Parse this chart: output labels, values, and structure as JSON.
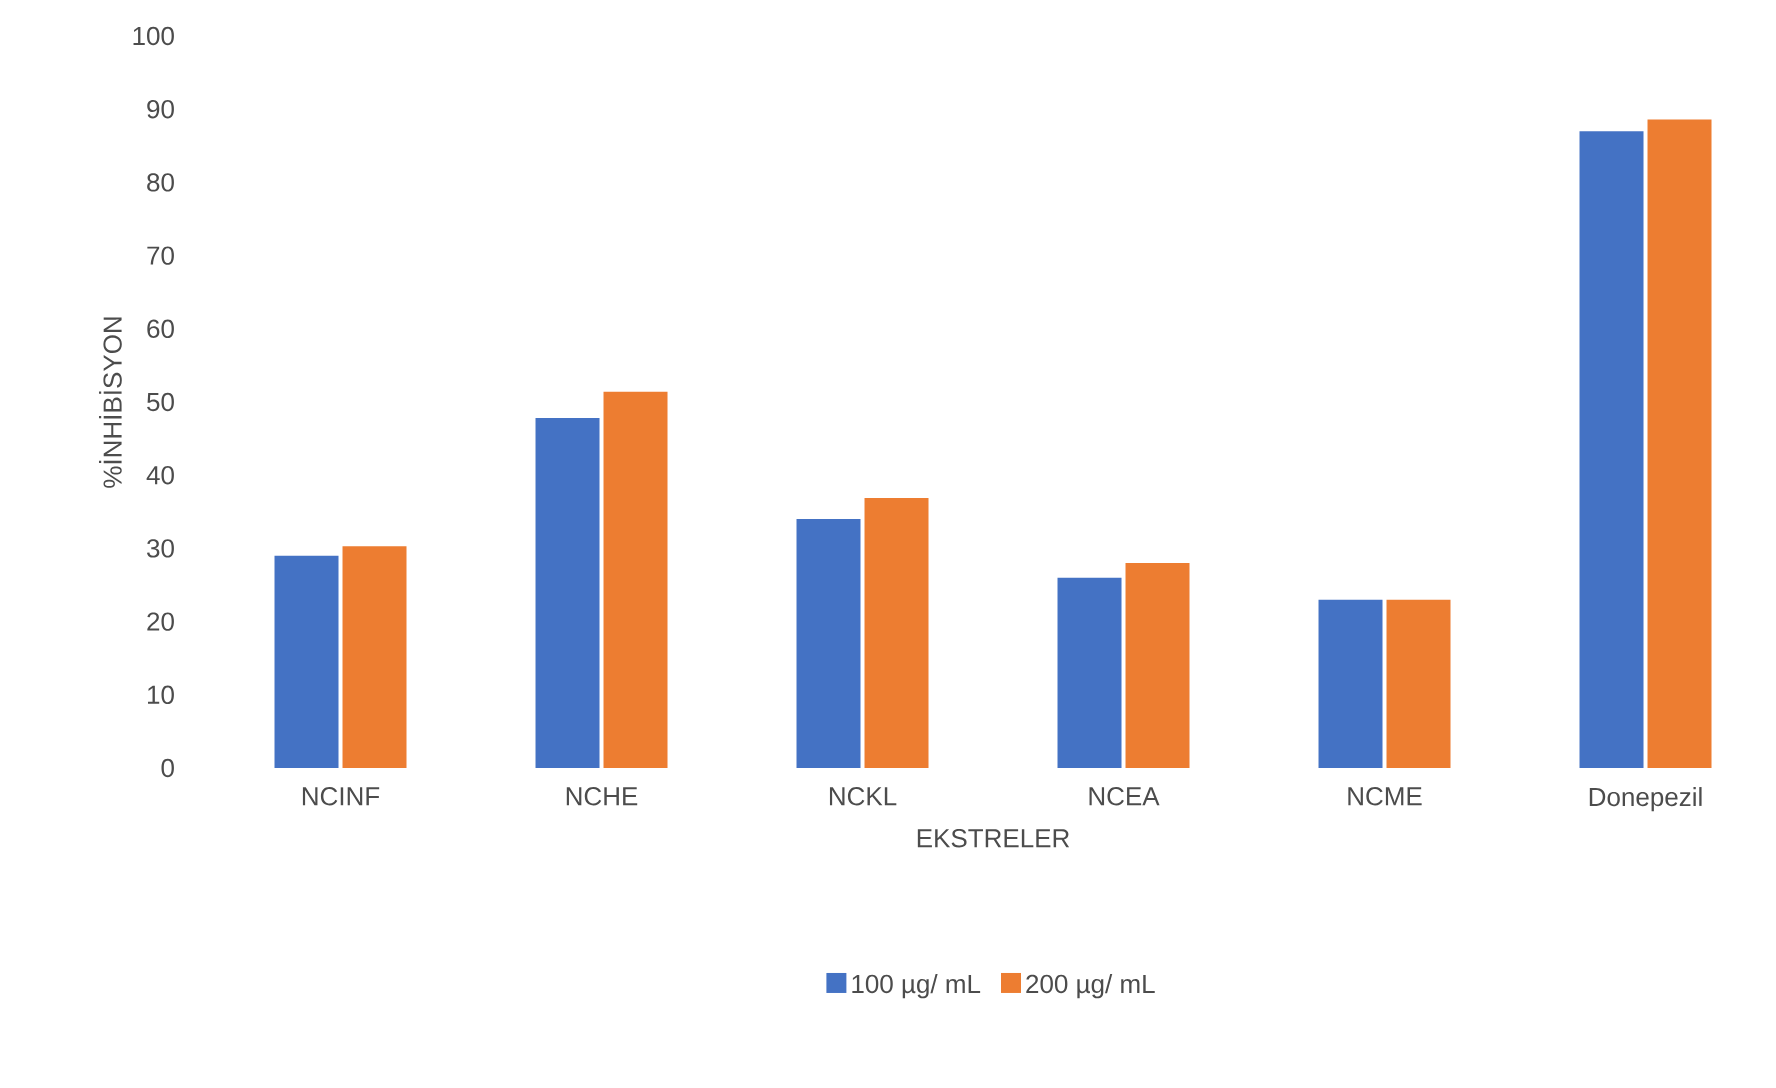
{
  "chart_data": {
    "type": "bar",
    "xlabel": "EKSTRELER",
    "ylabel": "%İNHİBİSYON",
    "categories": [
      "NCINF",
      "NCHE",
      "NCKL",
      "NCEA",
      "NCME",
      "Donepezil"
    ],
    "series": [
      {
        "name": "100 µg/ mL",
        "color": "#4472c4",
        "values": [
          29.0,
          47.8,
          34.0,
          26.0,
          23.0,
          87.0
        ]
      },
      {
        "name": "200 µg/ mL",
        "color": "#ed7d31",
        "values": [
          30.3,
          51.4,
          36.9,
          28.0,
          23.0,
          88.6
        ]
      }
    ],
    "ylim": [
      0,
      100
    ],
    "yticks": [
      0,
      10,
      20,
      30,
      40,
      50,
      60,
      70,
      80,
      90,
      100
    ],
    "grid": false,
    "legend": "bottom"
  }
}
